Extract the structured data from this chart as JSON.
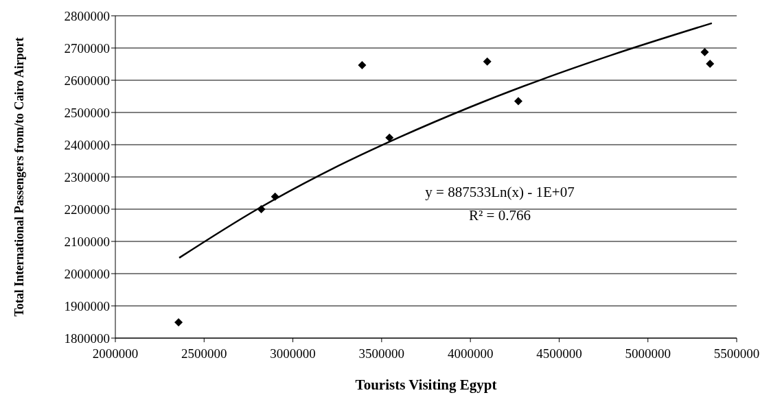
{
  "chart_data": {
    "type": "scatter",
    "xlabel": "Tourists Visiting Egypt",
    "ylabel": "Total International Passengers from/to Cairo Airport",
    "xlim": [
      2000000,
      5500000
    ],
    "xticks": [
      2000000,
      2500000,
      3000000,
      3500000,
      4000000,
      4500000,
      5000000,
      5500000
    ],
    "ylim": [
      1800000,
      2800000
    ],
    "yticks": [
      1800000,
      1900000,
      2000000,
      2100000,
      2200000,
      2300000,
      2400000,
      2500000,
      2600000,
      2700000,
      2800000
    ],
    "grid": "y",
    "marker": "diamond",
    "series": [
      {
        "color": "#000000",
        "x": [
          2356000,
          2822000,
          2900000,
          3390000,
          3544000,
          4095000,
          4270000,
          5320000,
          5350000
        ],
        "values": [
          1849000,
          2200000,
          2239000,
          2647000,
          2422000,
          2658000,
          2535000,
          2687000,
          2651000
        ]
      },
      {
        "type": "line",
        "color": "#000000",
        "marker": "none",
        "x": [
          2360000,
          2800000,
          3200000,
          3600000,
          4000000,
          4400000,
          4800000,
          5360000
        ],
        "values": [
          2049000,
          2200000,
          2319000,
          2423000,
          2517000,
          2602000,
          2679000,
          2777000
        ]
      }
    ],
    "annotations": [
      "y = 887533Ln(x) - 1E+07",
      "R² = 0.766"
    ]
  }
}
